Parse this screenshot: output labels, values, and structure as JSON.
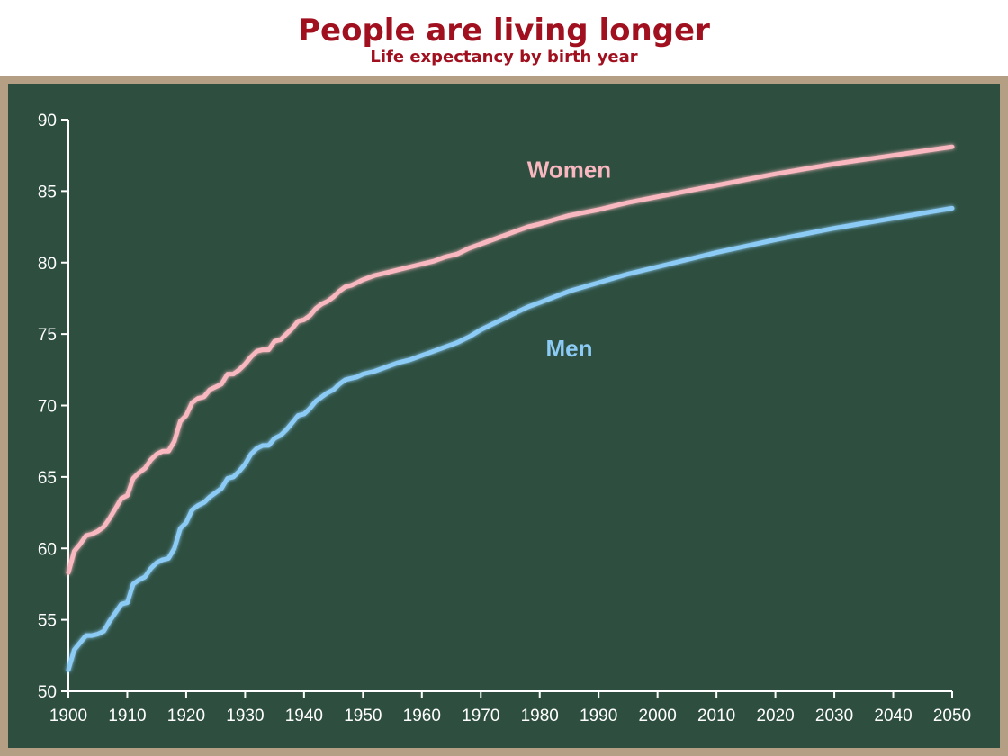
{
  "chart_data": {
    "type": "line",
    "title": "People are living longer",
    "subtitle": "Life expectancy by birth year",
    "xlim": [
      1900,
      2050
    ],
    "ylim": [
      50,
      90
    ],
    "xticks": [
      1900,
      1910,
      1920,
      1930,
      1940,
      1950,
      1960,
      1970,
      1980,
      1990,
      2000,
      2010,
      2020,
      2030,
      2040,
      2050
    ],
    "yticks": [
      50,
      55,
      60,
      65,
      70,
      75,
      80,
      85,
      90
    ],
    "grid": false,
    "legend": "inline labels",
    "series": [
      {
        "name": "Women",
        "color": "#f9b8c0",
        "points": [
          [
            1900,
            58.3
          ],
          [
            1901,
            59.8
          ],
          [
            1902,
            60.3
          ],
          [
            1903,
            60.9
          ],
          [
            1904,
            61.0
          ],
          [
            1905,
            61.2
          ],
          [
            1906,
            61.5
          ],
          [
            1907,
            62.1
          ],
          [
            1908,
            62.8
          ],
          [
            1909,
            63.5
          ],
          [
            1910,
            63.7
          ],
          [
            1911,
            64.9
          ],
          [
            1912,
            65.3
          ],
          [
            1913,
            65.6
          ],
          [
            1914,
            66.2
          ],
          [
            1915,
            66.6
          ],
          [
            1916,
            66.8
          ],
          [
            1917,
            66.8
          ],
          [
            1918,
            67.5
          ],
          [
            1919,
            68.9
          ],
          [
            1920,
            69.3
          ],
          [
            1921,
            70.2
          ],
          [
            1922,
            70.5
          ],
          [
            1923,
            70.6
          ],
          [
            1924,
            71.1
          ],
          [
            1925,
            71.3
          ],
          [
            1926,
            71.5
          ],
          [
            1927,
            72.2
          ],
          [
            1928,
            72.2
          ],
          [
            1929,
            72.5
          ],
          [
            1930,
            72.9
          ],
          [
            1931,
            73.4
          ],
          [
            1932,
            73.8
          ],
          [
            1933,
            73.9
          ],
          [
            1934,
            73.9
          ],
          [
            1935,
            74.5
          ],
          [
            1936,
            74.6
          ],
          [
            1937,
            75.0
          ],
          [
            1938,
            75.4
          ],
          [
            1939,
            75.9
          ],
          [
            1940,
            76.0
          ],
          [
            1941,
            76.3
          ],
          [
            1942,
            76.8
          ],
          [
            1943,
            77.1
          ],
          [
            1944,
            77.3
          ],
          [
            1945,
            77.6
          ],
          [
            1946,
            78.0
          ],
          [
            1947,
            78.3
          ],
          [
            1948,
            78.4
          ],
          [
            1949,
            78.6
          ],
          [
            1950,
            78.8
          ],
          [
            1952,
            79.1
          ],
          [
            1954,
            79.3
          ],
          [
            1956,
            79.5
          ],
          [
            1958,
            79.7
          ],
          [
            1960,
            79.9
          ],
          [
            1962,
            80.1
          ],
          [
            1964,
            80.4
          ],
          [
            1966,
            80.6
          ],
          [
            1968,
            81.0
          ],
          [
            1970,
            81.3
          ],
          [
            1972,
            81.6
          ],
          [
            1974,
            81.9
          ],
          [
            1976,
            82.2
          ],
          [
            1978,
            82.5
          ],
          [
            1980,
            82.7
          ],
          [
            1985,
            83.3
          ],
          [
            1990,
            83.7
          ],
          [
            1995,
            84.2
          ],
          [
            2000,
            84.6
          ],
          [
            2010,
            85.4
          ],
          [
            2020,
            86.2
          ],
          [
            2030,
            86.9
          ],
          [
            2040,
            87.5
          ],
          [
            2050,
            88.1
          ]
        ]
      },
      {
        "name": "Men",
        "color": "#8ccbf5",
        "points": [
          [
            1900,
            51.5
          ],
          [
            1901,
            52.9
          ],
          [
            1902,
            53.4
          ],
          [
            1903,
            53.9
          ],
          [
            1904,
            53.9
          ],
          [
            1905,
            54.0
          ],
          [
            1906,
            54.2
          ],
          [
            1907,
            54.9
          ],
          [
            1908,
            55.5
          ],
          [
            1909,
            56.1
          ],
          [
            1910,
            56.2
          ],
          [
            1911,
            57.5
          ],
          [
            1912,
            57.8
          ],
          [
            1913,
            58.0
          ],
          [
            1914,
            58.6
          ],
          [
            1915,
            59.0
          ],
          [
            1916,
            59.2
          ],
          [
            1917,
            59.3
          ],
          [
            1918,
            60.0
          ],
          [
            1919,
            61.4
          ],
          [
            1920,
            61.8
          ],
          [
            1921,
            62.7
          ],
          [
            1922,
            63.0
          ],
          [
            1923,
            63.2
          ],
          [
            1924,
            63.6
          ],
          [
            1925,
            63.9
          ],
          [
            1926,
            64.2
          ],
          [
            1927,
            64.9
          ],
          [
            1928,
            65.0
          ],
          [
            1929,
            65.4
          ],
          [
            1930,
            65.9
          ],
          [
            1931,
            66.6
          ],
          [
            1932,
            67.0
          ],
          [
            1933,
            67.2
          ],
          [
            1934,
            67.2
          ],
          [
            1935,
            67.7
          ],
          [
            1936,
            67.9
          ],
          [
            1937,
            68.3
          ],
          [
            1938,
            68.8
          ],
          [
            1939,
            69.3
          ],
          [
            1940,
            69.4
          ],
          [
            1941,
            69.8
          ],
          [
            1942,
            70.3
          ],
          [
            1943,
            70.6
          ],
          [
            1944,
            70.9
          ],
          [
            1945,
            71.1
          ],
          [
            1946,
            71.5
          ],
          [
            1947,
            71.8
          ],
          [
            1948,
            71.9
          ],
          [
            1949,
            72.0
          ],
          [
            1950,
            72.2
          ],
          [
            1952,
            72.4
          ],
          [
            1954,
            72.7
          ],
          [
            1956,
            73.0
          ],
          [
            1958,
            73.2
          ],
          [
            1960,
            73.5
          ],
          [
            1962,
            73.8
          ],
          [
            1964,
            74.1
          ],
          [
            1966,
            74.4
          ],
          [
            1968,
            74.8
          ],
          [
            1970,
            75.3
          ],
          [
            1972,
            75.7
          ],
          [
            1974,
            76.1
          ],
          [
            1976,
            76.5
          ],
          [
            1978,
            76.9
          ],
          [
            1980,
            77.2
          ],
          [
            1985,
            78.0
          ],
          [
            1990,
            78.6
          ],
          [
            1995,
            79.2
          ],
          [
            2000,
            79.7
          ],
          [
            2010,
            80.7
          ],
          [
            2020,
            81.6
          ],
          [
            2030,
            82.4
          ],
          [
            2040,
            83.1
          ],
          [
            2050,
            83.8
          ]
        ]
      }
    ]
  }
}
